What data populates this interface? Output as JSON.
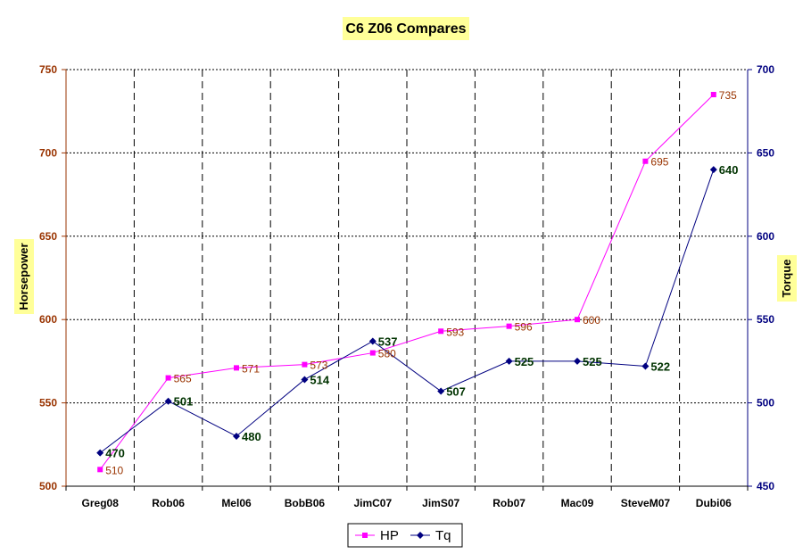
{
  "chart_data": {
    "type": "line",
    "title": "C6 Z06 Compares",
    "categories": [
      "Greg08",
      "Rob06",
      "Mel06",
      "BobB06",
      "JimC07",
      "JimS07",
      "Rob07",
      "Mac09",
      "SteveM07",
      "Dubi06"
    ],
    "series": [
      {
        "name": "HP",
        "axis": "left",
        "color": "#ff00ff",
        "marker": "square",
        "values": [
          510,
          565,
          571,
          573,
          580,
          593,
          596,
          600,
          695,
          735
        ]
      },
      {
        "name": "Tq",
        "axis": "right",
        "color": "#000080",
        "marker": "diamond",
        "values": [
          470,
          501,
          480,
          514,
          537,
          507,
          525,
          525,
          522,
          640
        ]
      }
    ],
    "ylabel": "Horsepower",
    "y2label": "Torque",
    "ylim": [
      500,
      750
    ],
    "y2lim": [
      450,
      700
    ],
    "yticks": [
      500,
      550,
      600,
      650,
      700,
      750
    ],
    "y2ticks": [
      450,
      500,
      550,
      600,
      650,
      700
    ],
    "grid": {
      "horizontal": "dotted",
      "vertical": "dashed"
    },
    "legend": "bottom-center",
    "colors": {
      "axis_left": "#993300",
      "axis_right": "#000080",
      "title_bg": "#ffff99",
      "hp_label": "#993300",
      "tq_label": "#003300"
    }
  }
}
